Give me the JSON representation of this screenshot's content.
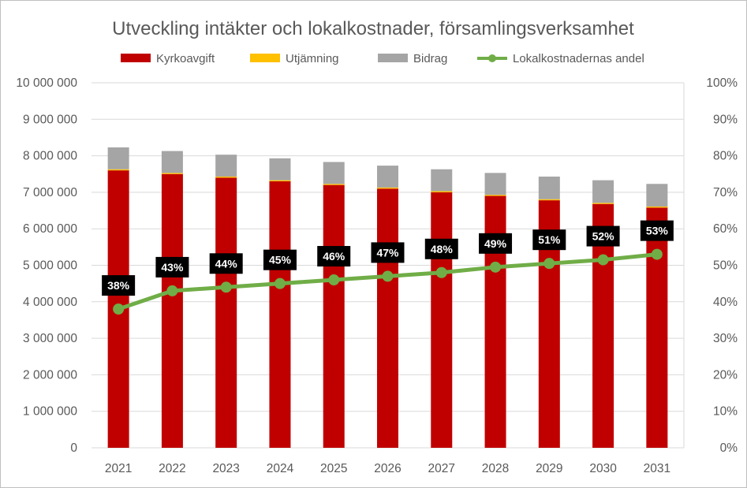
{
  "chart_data": {
    "type": "bar",
    "stacked": true,
    "title": "Utveckling intäkter och lokalkostnader, församlingsverksamhet",
    "categories": [
      "2021",
      "2022",
      "2023",
      "2024",
      "2025",
      "2026",
      "2027",
      "2028",
      "2029",
      "2030",
      "2031"
    ],
    "series": [
      {
        "name": "Kyrkoavgift",
        "type": "bar",
        "color": "#c00000",
        "axis": "left",
        "values": [
          7600000,
          7500000,
          7400000,
          7300000,
          7200000,
          7100000,
          7000000,
          6900000,
          6780000,
          6680000,
          6580000
        ]
      },
      {
        "name": "Utjämning",
        "type": "bar",
        "color": "#ffc000",
        "axis": "left",
        "values": [
          30000,
          30000,
          30000,
          30000,
          30000,
          30000,
          30000,
          30000,
          30000,
          30000,
          30000
        ]
      },
      {
        "name": "Bidrag",
        "type": "bar",
        "color": "#a5a5a5",
        "axis": "left",
        "values": [
          600000,
          600000,
          600000,
          600000,
          600000,
          600000,
          600000,
          600000,
          620000,
          620000,
          620000
        ]
      },
      {
        "name": "Lokalkostnadernas andel",
        "type": "line",
        "color": "#70ad47",
        "axis": "right",
        "values": [
          0.38,
          0.43,
          0.44,
          0.45,
          0.46,
          0.47,
          0.48,
          0.495,
          0.505,
          0.515,
          0.53
        ],
        "labels": [
          "38%",
          "43%",
          "44%",
          "45%",
          "46%",
          "47%",
          "48%",
          "49%",
          "51%",
          "52%",
          "53%"
        ]
      }
    ],
    "y_left": {
      "ylim": [
        0,
        10000000
      ],
      "ticks": [
        0,
        1000000,
        2000000,
        3000000,
        4000000,
        5000000,
        6000000,
        7000000,
        8000000,
        9000000,
        10000000
      ],
      "tick_labels": [
        "0",
        "1 000 000",
        "2 000 000",
        "3 000 000",
        "4 000 000",
        "5 000 000",
        "6 000 000",
        "7 000 000",
        "8 000 000",
        "9 000 000",
        "10 000 000"
      ]
    },
    "y_right": {
      "ylim": [
        0,
        1
      ],
      "ticks": [
        0,
        0.1,
        0.2,
        0.3,
        0.4,
        0.5,
        0.6,
        0.7,
        0.8,
        0.9,
        1.0
      ],
      "tick_labels": [
        "0%",
        "10%",
        "20%",
        "30%",
        "40%",
        "50%",
        "60%",
        "70%",
        "80%",
        "90%",
        "100%"
      ]
    },
    "grid": true,
    "legend_position": "top",
    "colors": {
      "grid": "#d9d9d9",
      "axis_text": "#595959",
      "label_bg": "#000000"
    }
  }
}
